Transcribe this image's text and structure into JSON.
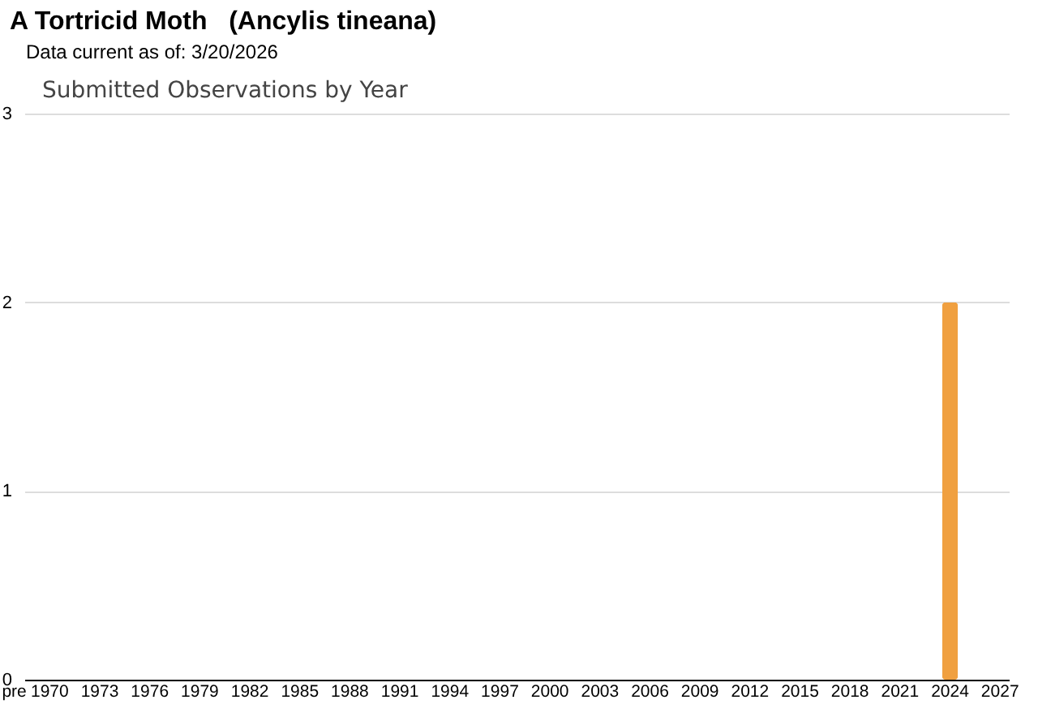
{
  "chart_data": {
    "type": "bar",
    "title": "A Tortricid Moth   (Ancylis tineana)",
    "subtitle": "Data current as of: 3/20/2026",
    "annotations": [
      "Submitted Observations by Year"
    ],
    "categories": [
      "pre",
      "1970",
      null,
      null,
      "1973",
      null,
      null,
      "1976",
      null,
      null,
      "1979",
      null,
      null,
      "1982",
      null,
      null,
      "1985",
      null,
      null,
      "1988",
      null,
      null,
      "1991",
      null,
      null,
      "1994",
      null,
      null,
      "1997",
      null,
      null,
      "2000",
      null,
      null,
      "2003",
      null,
      null,
      "2006",
      null,
      null,
      "2009",
      null,
      null,
      "2012",
      null,
      null,
      "2015",
      null,
      null,
      "2018",
      null,
      null,
      "2021",
      null,
      null,
      "2024",
      null,
      null,
      "2027"
    ],
    "values": [
      0,
      0,
      0,
      0,
      0,
      0,
      0,
      0,
      0,
      0,
      0,
      0,
      0,
      0,
      0,
      0,
      0,
      0,
      0,
      0,
      0,
      0,
      0,
      0,
      0,
      0,
      0,
      0,
      0,
      0,
      0,
      0,
      0,
      0,
      0,
      0,
      0,
      0,
      0,
      0,
      0,
      0,
      0,
      0,
      0,
      0,
      0,
      0,
      0,
      0,
      0,
      0,
      0,
      0,
      0,
      2,
      0,
      0,
      0
    ],
    "color": "#f0a040",
    "ylim": [
      0,
      3
    ],
    "yticks": [
      0,
      1,
      2,
      3
    ],
    "grid": "y"
  }
}
